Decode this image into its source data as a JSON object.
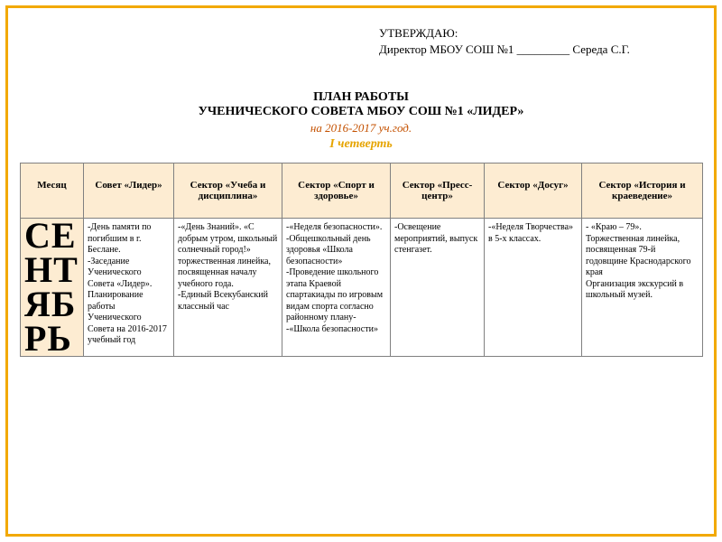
{
  "approval": {
    "line1": "УТВЕРЖДАЮ:",
    "line2": "Директор МБОУ СОШ №1 _________ Середа С.Г."
  },
  "title": {
    "line1": "ПЛАН РАБОТЫ",
    "line2": "УЧЕНИЧЕСКОГО СОВЕТА МБОУ СОШ №1 «ЛИДЕР»",
    "year": "на 2016-2017 уч.год.",
    "quarter": "I четверть"
  },
  "table": {
    "headers": {
      "month": "Месяц",
      "leader": "Совет «Лидер»",
      "ucheba": "Сектор «Учеба и дисциплина»",
      "sport": "Сектор «Спорт и здоровье»",
      "press": "Сектор «Пресс-центр»",
      "dosug": "Сектор «Досуг»",
      "istoria": "Сектор «История и краеведение»"
    },
    "row": {
      "month": "СЕ\nНТ\nЯБ\nРЬ",
      "leader": "-День памяти по погибшим в г. Беслане.\n-Заседание Ученического Совета «Лидер». Планирование работы Ученического Совета на 2016-2017 учебный год",
      "ucheba": "-«День Знаний». «С добрым утром, школьный солнечный город!» торжественная линейка, посвященная началу учебного года.\n-Единый Всекубанский классный час",
      "sport": "-«Неделя безопасности».\n-Общешкольный день здоровья «Школа безопасности»\n-Проведение школьного этапа Краевой спартакиады по игровым видам спорта согласно районному плану--«Школа безопасности»",
      "press": "-Освещение мероприятий, выпуск стенгазет.",
      "dosug": "-«Неделя Творчества» в  5-х классах.",
      "istoria": "- «Краю – 79». Торжественная линейка, посвященная 79-й годовщине Краснодарского края\nОрганизация экскурсий в школьный музей."
    }
  },
  "style": {
    "frame_color": "#f2a900",
    "header_bg": "#fdecd2",
    "month_text_color": "#e6a400",
    "quarter_color": "#e6a400",
    "year_color": "#c45100",
    "border_color": "#808080",
    "body_fontsize": 10,
    "header_fontsize": 11,
    "month_fontsize": 40
  }
}
